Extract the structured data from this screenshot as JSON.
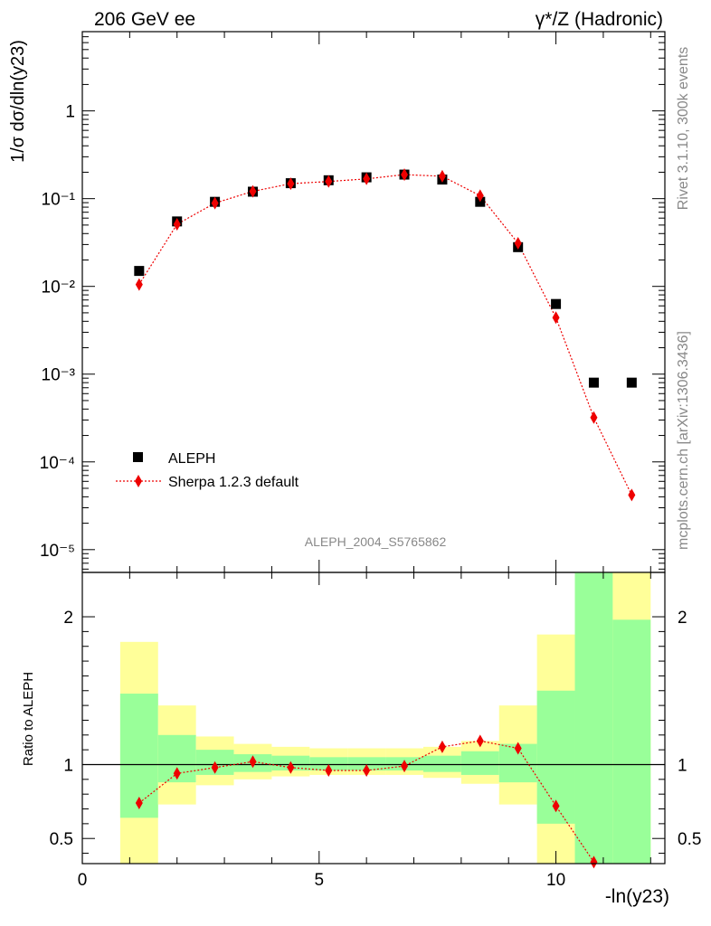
{
  "header": {
    "left": "206 GeV ee",
    "right": "γ*/Z (Hadronic)"
  },
  "side_text": {
    "upper": "Rivet 3.1.10,  300k events",
    "lower": "mcplots.cern.ch [arXiv:1306.3436]"
  },
  "analysis_label": "ALEPH_2004_S5765862",
  "colors": {
    "data": "#000000",
    "mc": "#ee0000",
    "band_inner": "#99ff99",
    "band_outer": "#ffff99"
  },
  "chart_data": [
    {
      "type": "scatter",
      "panel": "main",
      "ylabel": "1/σ  dσ/dln(y23)",
      "yscale": "log",
      "xlim": [
        0,
        12.3
      ],
      "ylim": [
        5.5e-06,
        8
      ],
      "ytick_labels": [
        "1",
        "10⁻¹",
        "10⁻²",
        "10⁻³",
        "10⁻⁴",
        "10⁻⁵"
      ],
      "legend": {
        "placement": "lower-left",
        "entries": [
          "ALEPH",
          "Sherpa 1.2.3 default"
        ]
      },
      "series": [
        {
          "name": "ALEPH",
          "x": [
            1.2,
            2.0,
            2.8,
            3.6,
            4.4,
            5.2,
            6.0,
            6.8,
            7.6,
            8.4,
            9.2,
            10.0,
            10.8,
            11.6
          ],
          "values": [
            0.015,
            0.055,
            0.092,
            0.12,
            0.15,
            0.162,
            0.175,
            0.188,
            0.165,
            0.092,
            0.028,
            0.0063,
            0.0008,
            0.0008
          ]
        },
        {
          "name": "Sherpa 1.2.3 default",
          "x": [
            1.2,
            2.0,
            2.8,
            3.6,
            4.4,
            5.2,
            6.0,
            6.8,
            7.6,
            8.4,
            9.2,
            10.0,
            10.8,
            11.6
          ],
          "values": [
            0.0105,
            0.051,
            0.089,
            0.121,
            0.148,
            0.157,
            0.168,
            0.188,
            0.18,
            0.108,
            0.031,
            0.0044,
            0.00032,
            4.2e-05
          ]
        }
      ]
    },
    {
      "type": "scatter",
      "panel": "ratio",
      "ylabel": "Ratio to ALEPH",
      "xlabel": "-ln(y23)",
      "xlim": [
        0,
        12.3
      ],
      "ylim": [
        0.33,
        2.3
      ],
      "xtick_labels": [
        "0",
        "5",
        "10"
      ],
      "ytick_labels": [
        "2",
        "1",
        "0.5"
      ],
      "bins": [
        {
          "lo": 0.8,
          "hi": 1.6,
          "inner": [
            0.64,
            1.48
          ],
          "outer": [
            0.33,
            1.83
          ]
        },
        {
          "lo": 1.6,
          "hi": 2.4,
          "inner": [
            0.88,
            1.2
          ],
          "outer": [
            0.73,
            1.4
          ]
        },
        {
          "lo": 2.4,
          "hi": 3.2,
          "inner": [
            0.93,
            1.1
          ],
          "outer": [
            0.86,
            1.19
          ]
        },
        {
          "lo": 3.2,
          "hi": 4.0,
          "inner": [
            0.95,
            1.07
          ],
          "outer": [
            0.9,
            1.14
          ]
        },
        {
          "lo": 4.0,
          "hi": 4.8,
          "inner": [
            0.96,
            1.06
          ],
          "outer": [
            0.92,
            1.12
          ]
        },
        {
          "lo": 4.8,
          "hi": 5.6,
          "inner": [
            0.96,
            1.05
          ],
          "outer": [
            0.93,
            1.11
          ]
        },
        {
          "lo": 5.6,
          "hi": 6.4,
          "inner": [
            0.96,
            1.05
          ],
          "outer": [
            0.93,
            1.11
          ]
        },
        {
          "lo": 6.4,
          "hi": 7.2,
          "inner": [
            0.96,
            1.05
          ],
          "outer": [
            0.93,
            1.11
          ]
        },
        {
          "lo": 7.2,
          "hi": 8.0,
          "inner": [
            0.95,
            1.06
          ],
          "outer": [
            0.91,
            1.12
          ]
        },
        {
          "lo": 8.0,
          "hi": 8.8,
          "inner": [
            0.93,
            1.09
          ],
          "outer": [
            0.87,
            1.16
          ]
        },
        {
          "lo": 8.8,
          "hi": 9.6,
          "inner": [
            0.88,
            1.14
          ],
          "outer": [
            0.73,
            1.4
          ]
        },
        {
          "lo": 9.6,
          "hi": 10.4,
          "inner": [
            0.6,
            1.5
          ],
          "outer": [
            0.33,
            1.88
          ]
        },
        {
          "lo": 10.4,
          "hi": 11.2,
          "inner": [
            0.33,
            2.3
          ],
          "outer": [
            0.33,
            2.3
          ]
        },
        {
          "lo": 11.2,
          "hi": 12.0,
          "inner": [
            0.33,
            1.98
          ],
          "outer": [
            0.33,
            2.3
          ]
        }
      ],
      "series": [
        {
          "name": "Sherpa 1.2.3 default",
          "x": [
            1.2,
            2.0,
            2.8,
            3.6,
            4.4,
            5.2,
            6.0,
            6.8,
            7.6,
            8.4,
            9.2,
            10.0,
            10.8
          ],
          "values": [
            0.74,
            0.94,
            0.98,
            1.02,
            0.98,
            0.96,
            0.96,
            0.99,
            1.12,
            1.16,
            1.11,
            0.72,
            0.34
          ]
        }
      ]
    }
  ]
}
